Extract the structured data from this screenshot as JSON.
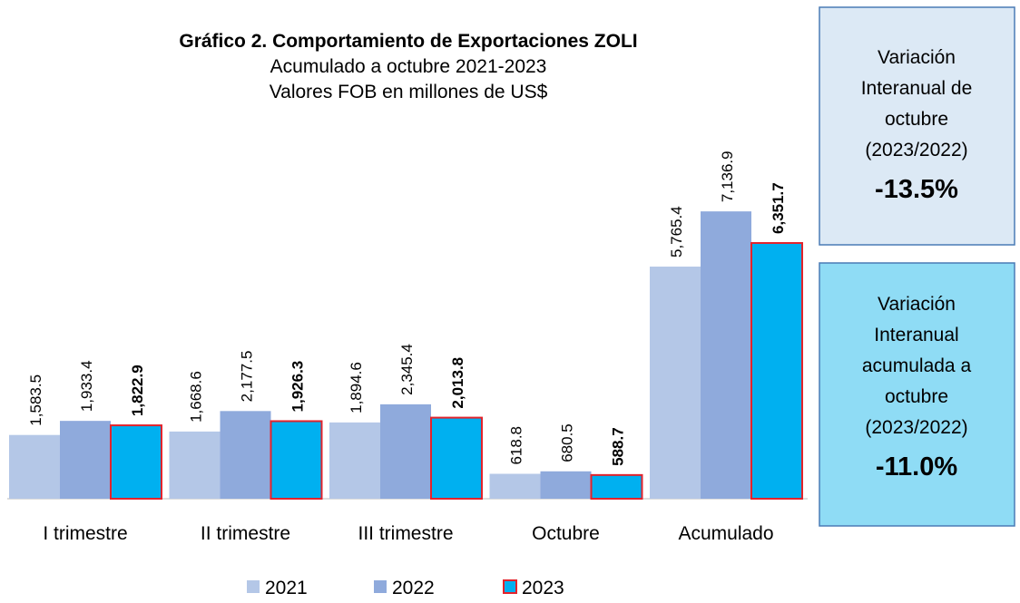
{
  "chart_data": {
    "type": "bar",
    "title": "Gráfico 2. Comportamiento de Exportaciones ZOLI",
    "subtitle": [
      "Acumulado a octubre 2021-2023",
      "Valores FOB en millones de US$"
    ],
    "categories": [
      "I trimestre",
      "II trimestre",
      "III trimestre",
      "Octubre",
      "Acumulado"
    ],
    "series": [
      {
        "name": "2021",
        "color": "#b4c7e7",
        "values": [
          1583.5,
          1668.6,
          1894.6,
          618.8,
          5765.4
        ],
        "value_labels": [
          "1,583.5",
          "1,668.6",
          "1,894.6",
          "618.8",
          "5,765.4"
        ]
      },
      {
        "name": "2022",
        "color": "#8faadc",
        "values": [
          1933.4,
          2177.5,
          2345.4,
          680.5,
          7136.9
        ],
        "value_labels": [
          "1,933.4",
          "2,177.5",
          "2,345.4",
          "680.5",
          "7,136.9"
        ]
      },
      {
        "name": "2023",
        "color": "#00b0f0",
        "values": [
          1822.9,
          1926.3,
          2013.8,
          588.7,
          6351.7
        ],
        "value_labels": [
          "1,822.9",
          "1,926.3",
          "2,013.8",
          "588.7",
          "6,351.7"
        ]
      }
    ],
    "legend": "bottom"
  },
  "boxes": [
    {
      "lines": [
        "Variación",
        "Interanual de",
        "octubre",
        "(2023/2022)"
      ],
      "value": "-13.5%"
    },
    {
      "lines": [
        "Variación",
        "Interanual",
        "acumulada a",
        "octubre",
        "(2023/2022)"
      ],
      "value": "-11.0%"
    }
  ]
}
